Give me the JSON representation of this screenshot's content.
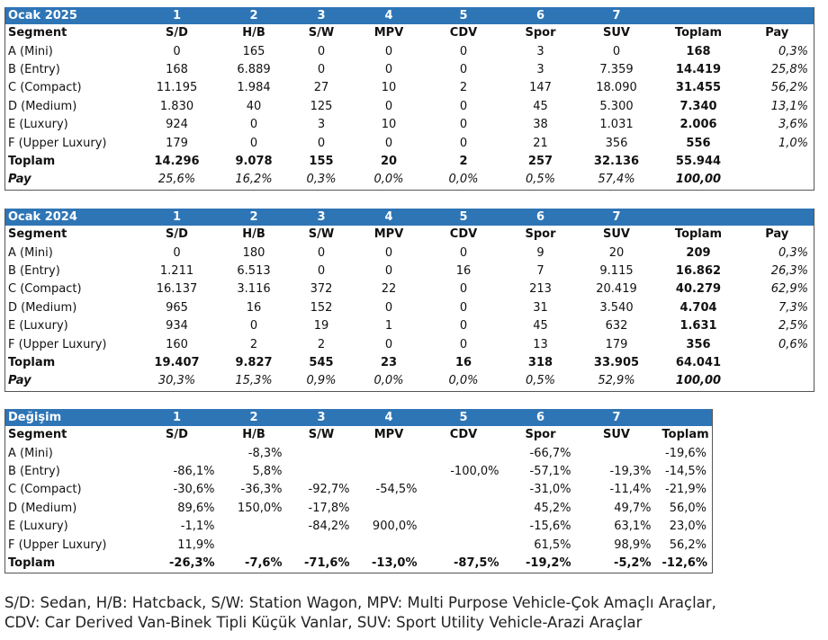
{
  "table_2025": {
    "title": "Ocak 2025",
    "col_numbers": [
      "1",
      "2",
      "3",
      "4",
      "5",
      "6",
      "7"
    ],
    "headers": [
      "Segment",
      "S/D",
      "H/B",
      "S/W",
      "MPV",
      "CDV",
      "Spor",
      "SUV",
      "Toplam",
      "Pay"
    ],
    "rows": [
      [
        "A (Mini)",
        "0",
        "165",
        "0",
        "0",
        "0",
        "3",
        "0",
        "168",
        "0,3%"
      ],
      [
        "B (Entry)",
        "168",
        "6.889",
        "0",
        "0",
        "0",
        "3",
        "7.359",
        "14.419",
        "25,8%"
      ],
      [
        "C (Compact)",
        "11.195",
        "1.984",
        "27",
        "10",
        "2",
        "147",
        "18.090",
        "31.455",
        "56,2%"
      ],
      [
        "D (Medium)",
        "1.830",
        "40",
        "125",
        "0",
        "0",
        "45",
        "5.300",
        "7.340",
        "13,1%"
      ],
      [
        "E (Luxury)",
        "924",
        "0",
        "3",
        "10",
        "0",
        "38",
        "1.031",
        "2.006",
        "3,6%"
      ],
      [
        "F (Upper Luxury)",
        "179",
        "0",
        "0",
        "0",
        "0",
        "21",
        "356",
        "556",
        "1,0%"
      ]
    ],
    "total_row": [
      "Toplam",
      "14.296",
      "9.078",
      "155",
      "20",
      "2",
      "257",
      "32.136",
      "55.944",
      ""
    ],
    "share_row": [
      "Pay",
      "25,6%",
      "16,2%",
      "0,3%",
      "0,0%",
      "0,0%",
      "0,5%",
      "57,4%",
      "100,00",
      ""
    ]
  },
  "table_2024": {
    "title": "Ocak 2024",
    "col_numbers": [
      "1",
      "2",
      "3",
      "4",
      "5",
      "6",
      "7"
    ],
    "headers": [
      "Segment",
      "S/D",
      "H/B",
      "S/W",
      "MPV",
      "CDV",
      "Spor",
      "SUV",
      "Toplam",
      "Pay"
    ],
    "rows": [
      [
        "A (Mini)",
        "0",
        "180",
        "0",
        "0",
        "0",
        "9",
        "20",
        "209",
        "0,3%"
      ],
      [
        "B (Entry)",
        "1.211",
        "6.513",
        "0",
        "0",
        "16",
        "7",
        "9.115",
        "16.862",
        "26,3%"
      ],
      [
        "C (Compact)",
        "16.137",
        "3.116",
        "372",
        "22",
        "0",
        "213",
        "20.419",
        "40.279",
        "62,9%"
      ],
      [
        "D (Medium)",
        "965",
        "16",
        "152",
        "0",
        "0",
        "31",
        "3.540",
        "4.704",
        "7,3%"
      ],
      [
        "E (Luxury)",
        "934",
        "0",
        "19",
        "1",
        "0",
        "45",
        "632",
        "1.631",
        "2,5%"
      ],
      [
        "F (Upper Luxury)",
        "160",
        "2",
        "2",
        "0",
        "0",
        "13",
        "179",
        "356",
        "0,6%"
      ]
    ],
    "total_row": [
      "Toplam",
      "19.407",
      "9.827",
      "545",
      "23",
      "16",
      "318",
      "33.905",
      "64.041",
      ""
    ],
    "share_row": [
      "Pay",
      "30,3%",
      "15,3%",
      "0,9%",
      "0,0%",
      "0,0%",
      "0,5%",
      "52,9%",
      "100,00",
      ""
    ]
  },
  "table_change": {
    "title": "Değişim",
    "col_numbers": [
      "1",
      "2",
      "3",
      "4",
      "5",
      "6",
      "7"
    ],
    "headers": [
      "Segment",
      "S/D",
      "H/B",
      "S/W",
      "MPV",
      "CDV",
      "Spor",
      "SUV",
      "Toplam"
    ],
    "rows": [
      [
        "A (Mini)",
        "",
        "-8,3%",
        "",
        "",
        "",
        "-66,7%",
        "",
        "-19,6%"
      ],
      [
        "B (Entry)",
        "-86,1%",
        "5,8%",
        "",
        "",
        "-100,0%",
        "-57,1%",
        "-19,3%",
        "-14,5%"
      ],
      [
        "C (Compact)",
        "-30,6%",
        "-36,3%",
        "-92,7%",
        "-54,5%",
        "",
        "-31,0%",
        "-11,4%",
        "-21,9%"
      ],
      [
        "D (Medium)",
        "89,6%",
        "150,0%",
        "-17,8%",
        "",
        "",
        "45,2%",
        "49,7%",
        "56,0%"
      ],
      [
        "E (Luxury)",
        "-1,1%",
        "",
        "-84,2%",
        "900,0%",
        "",
        "-15,6%",
        "63,1%",
        "23,0%"
      ],
      [
        "F (Upper Luxury)",
        "11,9%",
        "",
        "",
        "",
        "",
        "61,5%",
        "98,9%",
        "56,2%"
      ]
    ],
    "total_row": [
      "Toplam",
      "-26,3%",
      "-7,6%",
      "-71,6%",
      "-13,0%",
      "-87,5%",
      "-19,2%",
      "-5,2%",
      "-12,6%"
    ]
  },
  "legend": {
    "line1": "S/D: Sedan, H/B: Hatcback, S/W: Station Wagon, MPV: Multi Purpose Vehicle-Çok Amaçlı Araçlar,",
    "line2": "CDV: Car Derived Van-Binek Tipli Küçük Vanlar, SUV: Sport Utility Vehicle-Arazi Araçlar"
  },
  "colors": {
    "header_bg": "#2E75B6",
    "header_text": "#ffffff"
  }
}
